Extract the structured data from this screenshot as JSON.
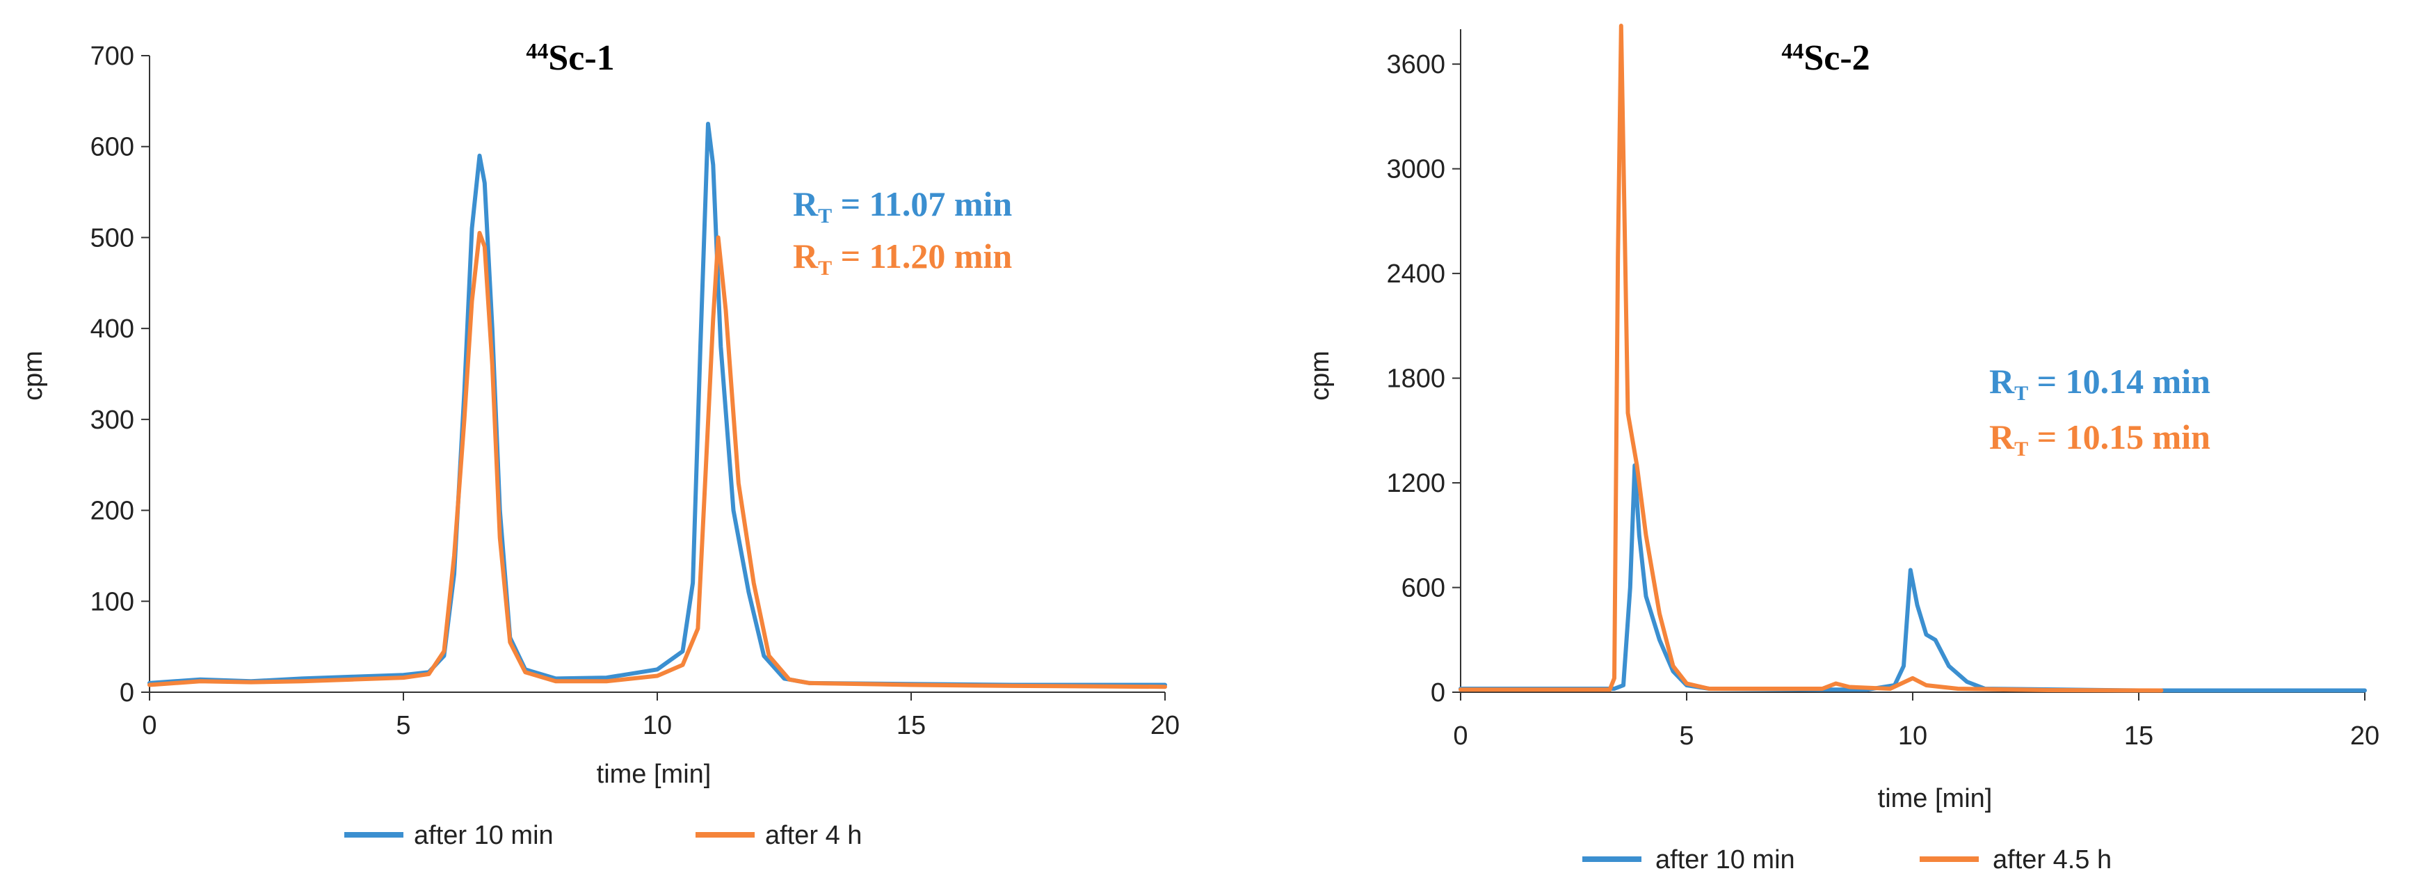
{
  "colors": {
    "blue": "#3b8fd0",
    "orange": "#f5843a"
  },
  "chart_data": [
    {
      "type": "line",
      "title_sup": "44",
      "title": "Sc-1",
      "xlabel": "time [min]",
      "ylabel": "cpm",
      "xlim": [
        0,
        20
      ],
      "ylim": [
        0,
        700
      ],
      "x_ticks": [
        0,
        5,
        10,
        15,
        20
      ],
      "y_ticks": [
        0,
        100,
        200,
        300,
        400,
        500,
        600,
        700
      ],
      "annotations": [
        {
          "prefix": "R",
          "sub": "T",
          "text": " = 11.07 min",
          "color": "#3b8fd0"
        },
        {
          "prefix": "R",
          "sub": "T",
          "text": " = 11.20 min",
          "color": "#f5843a"
        }
      ],
      "series": [
        {
          "name": "after 10 min",
          "color": "#3b8fd0",
          "points": [
            [
              0,
              10
            ],
            [
              1,
              14
            ],
            [
              2,
              12
            ],
            [
              3,
              15
            ],
            [
              4,
              17
            ],
            [
              5,
              19
            ],
            [
              5.5,
              22
            ],
            [
              5.8,
              40
            ],
            [
              6.0,
              130
            ],
            [
              6.2,
              330
            ],
            [
              6.35,
              510
            ],
            [
              6.5,
              590
            ],
            [
              6.6,
              560
            ],
            [
              6.75,
              400
            ],
            [
              6.9,
              200
            ],
            [
              7.1,
              60
            ],
            [
              7.4,
              25
            ],
            [
              8,
              15
            ],
            [
              9,
              16
            ],
            [
              10,
              25
            ],
            [
              10.5,
              45
            ],
            [
              10.7,
              120
            ],
            [
              10.85,
              380
            ],
            [
              11.0,
              625
            ],
            [
              11.1,
              580
            ],
            [
              11.25,
              380
            ],
            [
              11.5,
              200
            ],
            [
              11.8,
              110
            ],
            [
              12.1,
              40
            ],
            [
              12.5,
              15
            ],
            [
              13,
              10
            ],
            [
              15,
              9
            ],
            [
              17,
              8
            ],
            [
              20,
              8
            ]
          ]
        },
        {
          "name": "after 4 h",
          "color": "#f5843a",
          "points": [
            [
              0,
              8
            ],
            [
              1,
              12
            ],
            [
              2,
              11
            ],
            [
              3,
              12
            ],
            [
              4,
              14
            ],
            [
              5,
              16
            ],
            [
              5.5,
              20
            ],
            [
              5.8,
              45
            ],
            [
              6.0,
              150
            ],
            [
              6.2,
              300
            ],
            [
              6.35,
              430
            ],
            [
              6.5,
              505
            ],
            [
              6.6,
              490
            ],
            [
              6.75,
              360
            ],
            [
              6.9,
              170
            ],
            [
              7.1,
              55
            ],
            [
              7.4,
              22
            ],
            [
              8,
              12
            ],
            [
              9,
              12
            ],
            [
              10,
              18
            ],
            [
              10.5,
              30
            ],
            [
              10.8,
              70
            ],
            [
              10.95,
              240
            ],
            [
              11.1,
              410
            ],
            [
              11.2,
              500
            ],
            [
              11.35,
              420
            ],
            [
              11.6,
              230
            ],
            [
              11.9,
              120
            ],
            [
              12.2,
              40
            ],
            [
              12.6,
              14
            ],
            [
              13,
              10
            ],
            [
              15,
              8
            ],
            [
              17,
              7
            ],
            [
              20,
              6
            ]
          ]
        }
      ],
      "legend": {
        "placement": "bottom"
      }
    },
    {
      "type": "line",
      "title_sup": "44",
      "title": "Sc-2",
      "xlabel": "time [min]",
      "ylabel": "cpm",
      "xlim": [
        0,
        20
      ],
      "ylim": [
        0,
        3800
      ],
      "x_ticks": [
        0,
        5,
        10,
        15,
        20
      ],
      "y_ticks": [
        0,
        600,
        1200,
        1800,
        2400,
        3000,
        3600
      ],
      "annotations": [
        {
          "prefix": "R",
          "sub": "T",
          "text": " = 10.14 min",
          "color": "#3b8fd0"
        },
        {
          "prefix": "R",
          "sub": "T",
          "text": " = 10.15 min",
          "color": "#f5843a"
        }
      ],
      "series": [
        {
          "name": "after 10 min",
          "color": "#3b8fd0",
          "points": [
            [
              0,
              20
            ],
            [
              3.4,
              20
            ],
            [
              3.6,
              40
            ],
            [
              3.75,
              600
            ],
            [
              3.85,
              1300
            ],
            [
              3.95,
              900
            ],
            [
              4.1,
              550
            ],
            [
              4.4,
              300
            ],
            [
              4.7,
              120
            ],
            [
              5,
              40
            ],
            [
              5.5,
              20
            ],
            [
              8,
              15
            ],
            [
              9,
              15
            ],
            [
              9.6,
              40
            ],
            [
              9.8,
              150
            ],
            [
              9.95,
              700
            ],
            [
              10.1,
              500
            ],
            [
              10.3,
              330
            ],
            [
              10.5,
              300
            ],
            [
              10.8,
              150
            ],
            [
              11.2,
              60
            ],
            [
              11.6,
              20
            ],
            [
              15,
              10
            ],
            [
              17,
              10
            ],
            [
              20,
              10
            ]
          ]
        },
        {
          "name": "after 4.5 h",
          "color": "#f5843a",
          "points": [
            [
              0,
              15
            ],
            [
              3.3,
              15
            ],
            [
              3.4,
              80
            ],
            [
              3.48,
              2500
            ],
            [
              3.55,
              3820
            ],
            [
              3.62,
              2800
            ],
            [
              3.7,
              1600
            ],
            [
              3.8,
              1450
            ],
            [
              3.9,
              1300
            ],
            [
              4.1,
              900
            ],
            [
              4.4,
              450
            ],
            [
              4.7,
              150
            ],
            [
              5,
              50
            ],
            [
              5.5,
              20
            ],
            [
              8,
              20
            ],
            [
              8.3,
              50
            ],
            [
              8.6,
              30
            ],
            [
              9.5,
              20
            ],
            [
              10,
              80
            ],
            [
              10.3,
              40
            ],
            [
              11,
              20
            ],
            [
              13,
              12
            ],
            [
              15.5,
              10
            ]
          ]
        }
      ],
      "legend": {
        "placement": "bottom"
      }
    }
  ]
}
